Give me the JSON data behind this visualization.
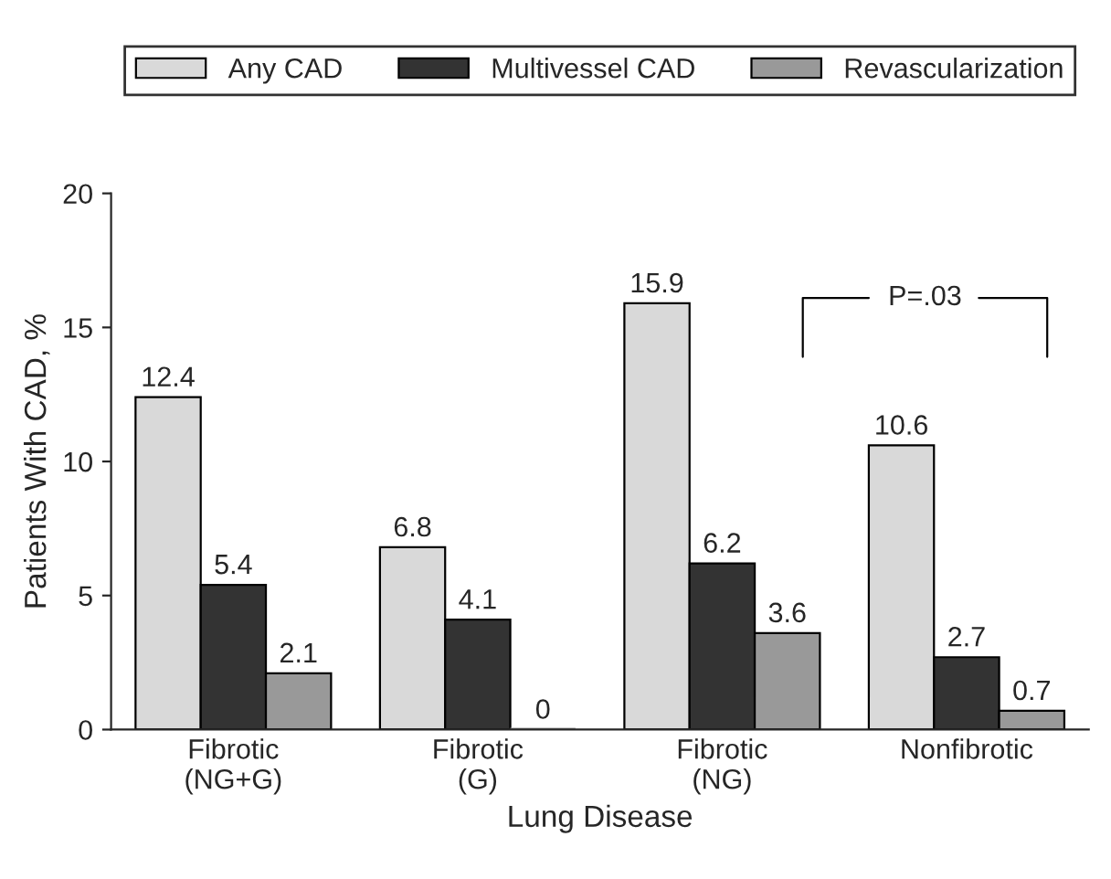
{
  "chart_data": {
    "type": "bar",
    "xlabel": "Lung Disease",
    "ylabel": "Patients With CAD, %",
    "categories": [
      "Fibrotic\n(NG+G)",
      "Fibrotic\n(G)",
      "Fibrotic\n(NG)",
      "Nonfibrotic"
    ],
    "series": [
      {
        "name": "Any CAD",
        "color": "#d9d9d9",
        "values": [
          12.4,
          6.8,
          15.9,
          10.6
        ]
      },
      {
        "name": "Multivessel CAD",
        "color": "#333333",
        "values": [
          5.4,
          4.1,
          6.2,
          2.7
        ]
      },
      {
        "name": "Revascularization",
        "color": "#999999",
        "values": [
          2.1,
          0,
          3.6,
          0.7
        ]
      }
    ],
    "ylim": [
      0,
      20
    ],
    "yticks": [
      0,
      5,
      10,
      15,
      20
    ],
    "grid": false,
    "legend": "top",
    "data_labels": true,
    "annotations": [
      "P=.03"
    ]
  }
}
